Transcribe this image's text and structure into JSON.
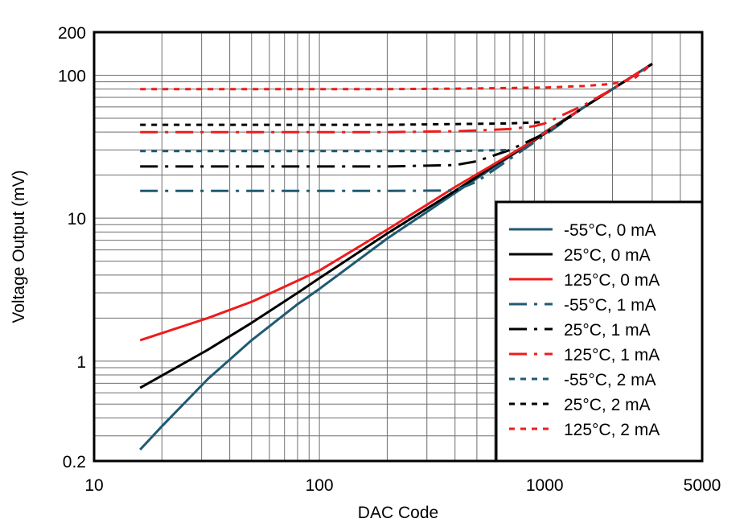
{
  "chart_data": {
    "type": "line",
    "title": "",
    "xlabel": "DAC Code",
    "ylabel": "Voltage Output (mV)",
    "x_scale": "log",
    "y_scale": "log",
    "xlim": [
      10,
      5000
    ],
    "ylim": [
      0.2,
      200
    ],
    "x_ticks": [
      {
        "value": 10,
        "label": "10"
      },
      {
        "value": 100,
        "label": "100"
      },
      {
        "value": 1000,
        "label": "1000"
      },
      {
        "value": 5000,
        "label": "5000"
      }
    ],
    "y_ticks": [
      {
        "value": 0.2,
        "label": "0.2"
      },
      {
        "value": 1,
        "label": "1"
      },
      {
        "value": 10,
        "label": "10"
      },
      {
        "value": 100,
        "label": "100"
      },
      {
        "value": 200,
        "label": "200"
      }
    ],
    "grid": true,
    "legend_position": "bottom-right",
    "series": [
      {
        "name": "-55°C, 0 mA",
        "color": "#1f5a72",
        "dash": "solid",
        "x": [
          16,
          20,
          32,
          50,
          80,
          100,
          200,
          400,
          600,
          800,
          1000,
          1500,
          2000,
          3000
        ],
        "y": [
          0.24,
          0.35,
          0.75,
          1.4,
          2.5,
          3.2,
          7.2,
          15,
          23,
          31,
          40,
          60,
          80,
          120
        ]
      },
      {
        "name": "25°C, 0 mA",
        "color": "#000000",
        "dash": "solid",
        "x": [
          16,
          32,
          50,
          80,
          100,
          200,
          400,
          600,
          800,
          1000,
          1500,
          2000,
          3000
        ],
        "y": [
          0.65,
          1.2,
          1.85,
          3.0,
          3.8,
          7.8,
          15.5,
          23.5,
          31,
          39,
          60,
          80,
          120
        ]
      },
      {
        "name": "125°C, 0 mA",
        "color": "#ee1c1c",
        "dash": "solid",
        "x": [
          16,
          32,
          50,
          64,
          100,
          200,
          400,
          600,
          800,
          1000,
          1500,
          2000,
          3000
        ],
        "y": [
          1.4,
          2.0,
          2.6,
          3.1,
          4.3,
          8.3,
          16.5,
          24,
          31.5,
          39.5,
          60,
          80,
          120
        ]
      },
      {
        "name": "-55°C, 1 mA",
        "color": "#1f5a72",
        "dash": "dashdot",
        "x": [
          16,
          50,
          100,
          200,
          400,
          500,
          800,
          1000,
          1500,
          2000,
          3000
        ],
        "y": [
          15.5,
          15.5,
          15.5,
          15.5,
          15.6,
          18,
          30,
          38,
          60,
          80,
          120
        ]
      },
      {
        "name": "25°C, 1 mA",
        "color": "#000000",
        "dash": "dashdot",
        "x": [
          16,
          50,
          100,
          200,
          400,
          500,
          700,
          1000,
          1500,
          2000,
          3000
        ],
        "y": [
          23,
          23,
          23,
          23,
          23.5,
          25,
          30,
          39,
          60,
          80,
          120
        ]
      },
      {
        "name": "125°C, 1 mA",
        "color": "#ee1c1c",
        "dash": "dashdot",
        "x": [
          16,
          50,
          100,
          200,
          400,
          700,
          900,
          1000,
          1500,
          2000,
          3000
        ],
        "y": [
          40,
          40,
          40,
          40,
          40.5,
          42,
          44,
          46,
          62,
          80,
          120
        ]
      },
      {
        "name": "-55°C, 2 mA",
        "color": "#1f5a72",
        "dash": "dot",
        "x": [
          16,
          50,
          100,
          200,
          400,
          700
        ],
        "y": [
          29.5,
          29.5,
          29.5,
          29.5,
          29.5,
          30
        ]
      },
      {
        "name": "25°C, 2 mA",
        "color": "#000000",
        "dash": "dot",
        "x": [
          16,
          50,
          100,
          200,
          400,
          700,
          1000
        ],
        "y": [
          45,
          45,
          45,
          45,
          45.5,
          46,
          47
        ]
      },
      {
        "name": "125°C, 2 mA",
        "color": "#ee1c1c",
        "dash": "dot",
        "x": [
          16,
          50,
          100,
          200,
          400,
          1000,
          1500,
          2000,
          2500,
          3000
        ],
        "y": [
          80,
          80,
          80,
          80,
          80.5,
          82,
          84,
          87,
          95,
          120
        ]
      }
    ]
  }
}
